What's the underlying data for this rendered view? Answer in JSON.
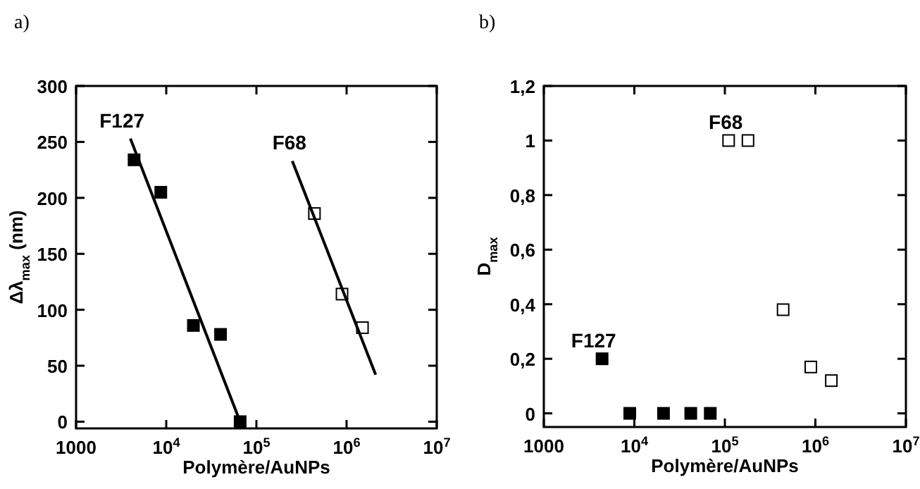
{
  "chart_data": [
    {
      "type": "scatter",
      "title": "a)",
      "xlabel": "Polymère/AuNPs",
      "ylabel": "Δλ$_{max}$ (nm)",
      "log": "x",
      "xlim": [
        1000,
        10000000
      ],
      "xticks": [
        1000,
        {
          "value": 10000,
          "label": "10$^{4}$"
        },
        {
          "value": 100000,
          "label": "10$^{5}$"
        },
        {
          "value": 1000000,
          "label": "10$^{6}$"
        },
        {
          "value": 10000000,
          "label": "10$^{7}$"
        }
      ],
      "ylim": [
        -6,
        300
      ],
      "yticks": [
        0,
        50,
        100,
        150,
        200,
        250,
        300
      ],
      "grid": false,
      "series": [
        {
          "color": "#000000",
          "marker": "square",
          "x": [
            4400,
            8700,
            20000,
            40000,
            66000
          ],
          "values": [
            234,
            205,
            86,
            78,
            0
          ]
        },
        {
          "color": "#ffffff",
          "marker": "square",
          "x": [
            440000,
            890000,
            1500000
          ],
          "values": [
            186,
            114,
            84
          ]
        },
        {
          "type": "line",
          "color": "#000000",
          "x": [
            4000,
            66000
          ],
          "values": [
            253,
            0
          ]
        },
        {
          "type": "line",
          "color": "#000000",
          "x": [
            250000,
            2100000
          ],
          "values": [
            233,
            42
          ]
        }
      ],
      "annotations": [
        {
          "text": "F127",
          "x": 4000,
          "y": 253
        },
        {
          "text": "F68",
          "x": 250000,
          "y": 233
        }
      ]
    },
    {
      "type": "scatter",
      "title": "b)",
      "xlabel": "Polymère/AuNPs",
      "ylabel": "D$_{max}$",
      "log": "x",
      "xlim": [
        1000,
        10000000
      ],
      "xticks": [
        1000,
        {
          "value": 10000,
          "label": "10$^{4}$"
        },
        {
          "value": 100000,
          "label": "10$^{5}$"
        },
        {
          "value": 1000000,
          "label": "10$^{6}$"
        },
        {
          "value": 10000000,
          "label": "10$^{7}$"
        }
      ],
      "ylim": [
        -0.05,
        1.2
      ],
      "yticks": [
        0,
        {
          "value": 0.2,
          "label": "0,2"
        },
        {
          "value": 0.4,
          "label": "0,4"
        },
        {
          "value": 0.6,
          "label": "0,6"
        },
        {
          "value": 0.8,
          "label": "0,8"
        },
        1,
        {
          "value": 1.2,
          "label": "1,2"
        }
      ],
      "grid": false,
      "series": [
        {
          "color": "#000000",
          "marker": "square",
          "x": [
            4400,
            8900,
            21000,
            42000,
            69000
          ],
          "values": [
            0.2,
            0,
            0,
            0,
            0
          ]
        },
        {
          "color": "#ffffff",
          "marker": "square",
          "x": [
            110000,
            180000,
            440000,
            890000,
            1500000
          ],
          "values": [
            1,
            1,
            0.38,
            0.17,
            0.12
          ]
        }
      ],
      "annotations": [
        {
          "text": "F127",
          "x": 4400,
          "y": 0.2
        },
        {
          "text": "F68",
          "x": 110000,
          "y": 1
        }
      ]
    }
  ]
}
